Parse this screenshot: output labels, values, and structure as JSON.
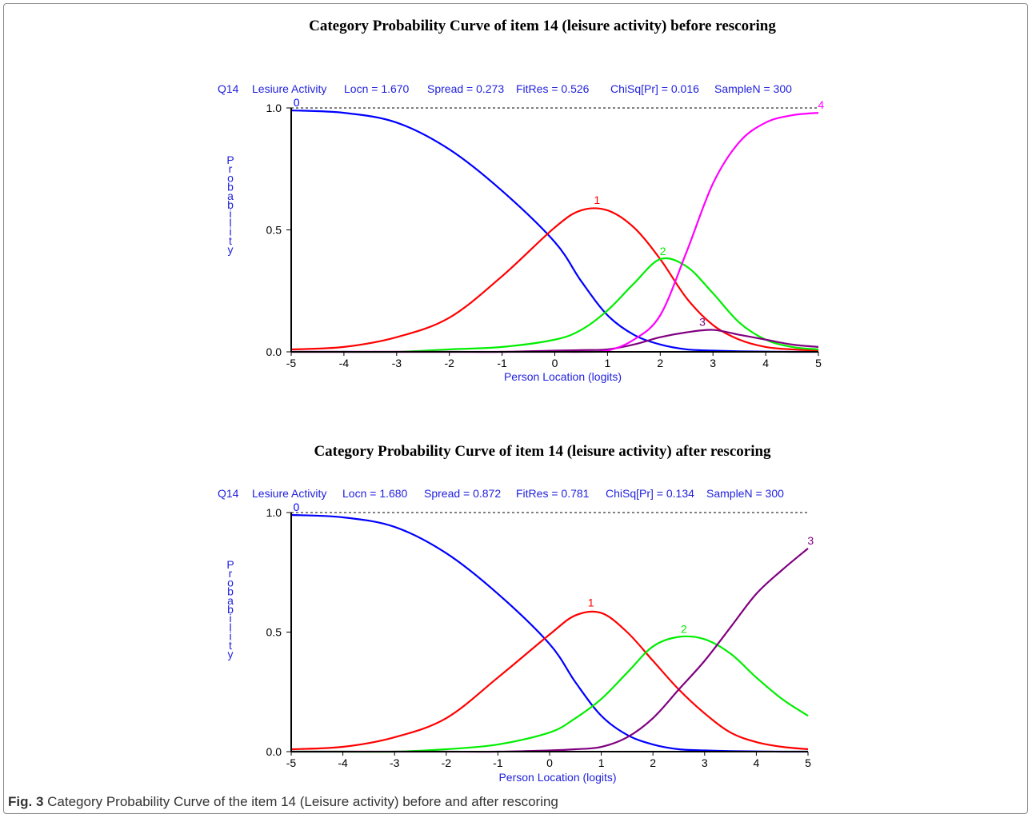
{
  "figure": {
    "caption_label": "Fig. 3",
    "caption_text": "Category Probability Curve of the item 14 (Leisure activity) before and after rescoring"
  },
  "chart_data": [
    {
      "type": "line",
      "title": "Category Probability Curve of item 14 (leisure activity) before rescoring",
      "stats": [
        "Q14",
        "Lesiure Activity",
        "Locn = 1.670",
        "Spread = 0.273",
        "FitRes = 0.526",
        "ChiSq[Pr] = 0.016",
        "SampleN = 300"
      ],
      "xlabel": "Person Location (logits)",
      "ylabel": "Probability",
      "xlim": [
        -5,
        5
      ],
      "ylim": [
        0,
        1
      ],
      "x_ticks": [
        "-5",
        "-4",
        "-3",
        "-2",
        "-1",
        "0",
        "1",
        "2",
        "3",
        "4",
        "5"
      ],
      "y_ticks": [
        "0.0",
        "0.5",
        "1.0"
      ],
      "reference_line": 1.0,
      "x": [
        -5,
        -4,
        -3,
        -2,
        -1,
        0,
        0.5,
        1,
        1.5,
        2,
        2.5,
        3,
        3.5,
        4,
        4.5,
        5
      ],
      "series": [
        {
          "name": "0",
          "color": "#0000ff",
          "values": [
            0.99,
            0.98,
            0.94,
            0.83,
            0.66,
            0.45,
            0.29,
            0.15,
            0.07,
            0.03,
            0.01,
            0.005,
            0.002,
            0.001,
            0.0,
            0.0
          ],
          "label_x": -4.9,
          "label_y": 1.0
        },
        {
          "name": "1",
          "color": "#ff0000",
          "values": [
            0.01,
            0.02,
            0.06,
            0.14,
            0.31,
            0.51,
            0.58,
            0.58,
            0.51,
            0.38,
            0.22,
            0.11,
            0.05,
            0.02,
            0.01,
            0.005
          ],
          "label_x": 0.8,
          "label_y": 0.6
        },
        {
          "name": "2",
          "color": "#00ee00",
          "values": [
            0.0,
            0.0,
            0.0,
            0.01,
            0.02,
            0.05,
            0.09,
            0.17,
            0.28,
            0.38,
            0.35,
            0.24,
            0.12,
            0.05,
            0.02,
            0.01
          ],
          "label_x": 2.05,
          "label_y": 0.39
        },
        {
          "name": "3",
          "color": "#800080",
          "values": [
            0.0,
            0.0,
            0.0,
            0.0,
            0.0,
            0.005,
            0.007,
            0.01,
            0.03,
            0.06,
            0.08,
            0.09,
            0.07,
            0.05,
            0.03,
            0.02
          ],
          "label_x": 2.8,
          "label_y": 0.1
        },
        {
          "name": "4",
          "color": "#ff00ff",
          "values": [
            0.0,
            0.0,
            0.0,
            0.0,
            0.0,
            0.0,
            0.0,
            0.005,
            0.05,
            0.15,
            0.41,
            0.69,
            0.86,
            0.94,
            0.97,
            0.98
          ],
          "label_x": 5.05,
          "label_y": 0.99
        }
      ]
    },
    {
      "type": "line",
      "title": "Category Probability Curve of item 14 (leisure activity) after rescoring",
      "stats": [
        "Q14",
        "Lesiure Activity",
        "Locn = 1.680",
        "Spread = 0.872",
        "FitRes = 0.781",
        "ChiSq[Pr] = 0.134",
        "SampleN = 300"
      ],
      "xlabel": "Person Location (logits)",
      "ylabel": "Probability",
      "xlim": [
        -5,
        5
      ],
      "ylim": [
        0,
        1
      ],
      "x_ticks": [
        "-5",
        "-4",
        "-3",
        "-2",
        "-1",
        "0",
        "1",
        "2",
        "3",
        "4",
        "5"
      ],
      "y_ticks": [
        "0.0",
        "0.5",
        "1.0"
      ],
      "reference_line": 1.0,
      "x": [
        -5,
        -4,
        -3,
        -2,
        -1,
        0,
        0.5,
        1,
        1.5,
        2,
        2.5,
        3,
        3.5,
        4,
        4.5,
        5
      ],
      "series": [
        {
          "name": "0",
          "color": "#0000ff",
          "values": [
            0.99,
            0.98,
            0.94,
            0.83,
            0.66,
            0.45,
            0.29,
            0.15,
            0.07,
            0.03,
            0.01,
            0.005,
            0.002,
            0.001,
            0.0,
            0.0
          ],
          "label_x": -4.9,
          "label_y": 1.0
        },
        {
          "name": "1",
          "color": "#ff0000",
          "values": [
            0.01,
            0.02,
            0.06,
            0.14,
            0.31,
            0.49,
            0.57,
            0.58,
            0.5,
            0.38,
            0.26,
            0.16,
            0.08,
            0.04,
            0.02,
            0.01
          ],
          "label_x": 0.8,
          "label_y": 0.6
        },
        {
          "name": "2",
          "color": "#00ee00",
          "values": [
            0.0,
            0.0,
            0.0,
            0.01,
            0.03,
            0.08,
            0.14,
            0.22,
            0.33,
            0.44,
            0.48,
            0.47,
            0.41,
            0.31,
            0.22,
            0.15
          ],
          "label_x": 2.6,
          "label_y": 0.49
        },
        {
          "name": "3",
          "color": "#800080",
          "values": [
            0.0,
            0.0,
            0.0,
            0.0,
            0.0,
            0.005,
            0.01,
            0.02,
            0.06,
            0.14,
            0.26,
            0.38,
            0.52,
            0.66,
            0.76,
            0.85
          ],
          "label_x": 5.05,
          "label_y": 0.86
        }
      ]
    }
  ]
}
